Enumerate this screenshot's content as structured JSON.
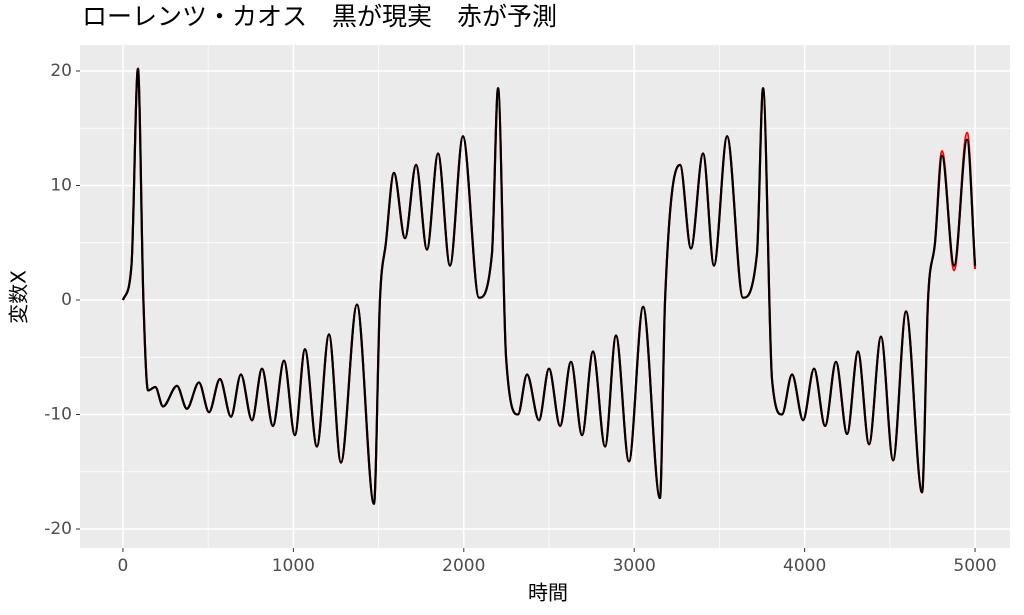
{
  "chart_data": {
    "type": "line",
    "title": "ローレンツ・カオス　黒が現実　赤が予測",
    "x_label": "時間",
    "y_label": "変数X",
    "x": [
      0,
      50,
      88,
      120,
      147,
      190,
      235,
      317,
      375,
      446,
      505,
      569,
      634,
      692,
      757,
      816,
      880,
      945,
      1009,
      1068,
      1138,
      1209,
      1279,
      1373,
      1473,
      1508,
      1543,
      1590,
      1655,
      1720,
      1784,
      1849,
      1919,
      1995,
      2089,
      2165,
      2201,
      2248,
      2318,
      2371,
      2441,
      2500,
      2565,
      2629,
      2694,
      2758,
      2829,
      2893,
      2969,
      3052,
      3151,
      3181,
      3269,
      3333,
      3404,
      3468,
      3545,
      3638,
      3720,
      3756,
      3809,
      3867,
      3926,
      3991,
      4055,
      4120,
      4184,
      4249,
      4313,
      4378,
      4448,
      4519,
      4595,
      4689,
      4724,
      4765,
      4806,
      4877,
      4953,
      5000
    ],
    "series": [
      {
        "color": "#ff0000",
        "values": [
          0,
          3,
          20.2,
          0,
          -7.9,
          -7.6,
          -9.3,
          -7.5,
          -9.5,
          -7.2,
          -9.8,
          -6.9,
          -10.2,
          -6.5,
          -10.5,
          -6,
          -11,
          -5.3,
          -11.8,
          -4.3,
          -12.8,
          -3,
          -14.2,
          -0.4,
          -17.8,
          0,
          5,
          11.1,
          5.4,
          11.8,
          4.4,
          12.8,
          3,
          14.3,
          0.2,
          4,
          18.5,
          -5,
          -10,
          -6.5,
          -10.5,
          -6,
          -11,
          -5.4,
          -11.8,
          -4.5,
          -12.8,
          -3.1,
          -14.1,
          -0.6,
          -17.3,
          0,
          11.8,
          4.5,
          12.8,
          3,
          14.3,
          0.2,
          4,
          18.5,
          -7,
          -10,
          -6.5,
          -10.5,
          -6,
          -11,
          -5.4,
          -11.7,
          -4.5,
          -12.6,
          -3.2,
          -14,
          -1,
          -16.8,
          0,
          5,
          13,
          2.6,
          14.6,
          2.7
        ]
      },
      {
        "color": "#000000",
        "values": [
          0,
          3,
          20.2,
          0,
          -7.9,
          -7.6,
          -9.3,
          -7.5,
          -9.5,
          -7.2,
          -9.8,
          -6.9,
          -10.2,
          -6.5,
          -10.5,
          -6,
          -11,
          -5.3,
          -11.8,
          -4.3,
          -12.8,
          -3,
          -14.2,
          -0.4,
          -17.8,
          0,
          5,
          11.1,
          5.4,
          11.8,
          4.4,
          12.8,
          3,
          14.3,
          0.2,
          4,
          18.5,
          -5,
          -10,
          -6.5,
          -10.5,
          -6,
          -11,
          -5.4,
          -11.8,
          -4.5,
          -12.8,
          -3.1,
          -14.1,
          -0.6,
          -17.3,
          0,
          11.8,
          4.5,
          12.8,
          3,
          14.3,
          0.2,
          4,
          18.5,
          -7,
          -10,
          -6.5,
          -10.5,
          -6,
          -11,
          -5.4,
          -11.7,
          -4.5,
          -12.6,
          -3.2,
          -14,
          -1,
          -16.8,
          0,
          5,
          12.6,
          3,
          14,
          3
        ]
      }
    ],
    "xlim": [
      -252,
      5205
    ],
    "ylim": [
      -21.66,
      22.27
    ],
    "xticks": [
      0,
      1000,
      2000,
      3000,
      4000,
      5000
    ],
    "yticks": [
      -20,
      -10,
      0,
      10,
      20
    ],
    "grid": true
  }
}
